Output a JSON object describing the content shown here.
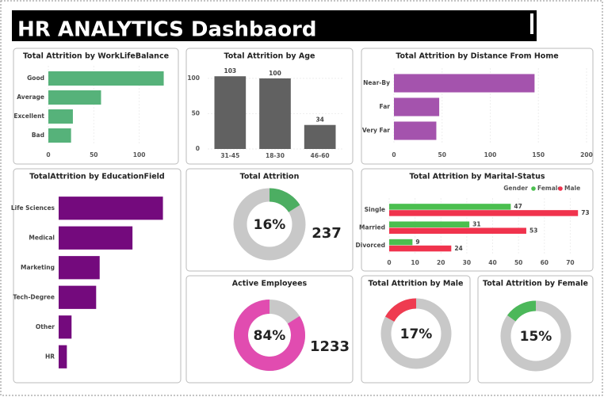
{
  "title": "HR ANALYTICS Dashbaord",
  "chart_data": [
    {
      "type": "barh",
      "title": "Total Attrition by WorkLifeBalance",
      "categories": [
        "Good",
        "Average",
        "Excellent",
        "Bad"
      ],
      "values": [
        127,
        58,
        27,
        25
      ],
      "color": "#56b27a",
      "xlim": [
        0,
        130
      ],
      "xticks": [
        0,
        50,
        100
      ]
    },
    {
      "type": "bar",
      "title": "Total Attrition by Age",
      "categories": [
        "31-45",
        "18-30",
        "46-60"
      ],
      "values": [
        103,
        100,
        34
      ],
      "color": "#616161",
      "ylim": [
        0,
        110
      ],
      "yticks": [
        0,
        50,
        100
      ]
    },
    {
      "type": "barh",
      "title": "Total Attrition by Distance From Home",
      "categories": [
        "Near-By",
        "Far",
        "Very Far"
      ],
      "values": [
        146,
        47,
        44
      ],
      "color": "#a453ad",
      "xlim": [
        0,
        200
      ],
      "xticks": [
        0,
        50,
        100,
        150,
        200
      ]
    },
    {
      "type": "barh",
      "title": "TotalAttrition by EducationField",
      "categories": [
        "Life Sciences",
        "Medical",
        "Marketing",
        "Tech-Degree",
        "Other",
        "HR"
      ],
      "values": [
        89,
        63,
        35,
        32,
        11,
        7
      ],
      "color": "#740a7d",
      "xlim": [
        0,
        92
      ]
    },
    {
      "type": "donut",
      "title": "Total Attrition",
      "value": 16,
      "value_label": "16%",
      "total": 237,
      "color": "#4cae62",
      "clockwise": true
    },
    {
      "type": "barh_grouped",
      "title": "Total Attrition by Marital-Status",
      "categories": [
        "Single",
        "Married",
        "Divorced"
      ],
      "legend_title": "Gender",
      "series": [
        {
          "name": "Female",
          "color": "#4bbf4f",
          "values": [
            47,
            31,
            9
          ]
        },
        {
          "name": "Male",
          "color": "#f0334d",
          "values": [
            73,
            53,
            24
          ]
        }
      ],
      "xlim": [
        0,
        76
      ],
      "xticks": [
        0,
        10,
        20,
        30,
        40,
        50,
        60,
        70
      ]
    },
    {
      "type": "donut",
      "title": "Active Employees",
      "value": 84,
      "value_label": "84%",
      "total": 1233,
      "color": "#e14cb0",
      "clockwise": false
    },
    {
      "type": "donut",
      "title": "Total Attrition by Male",
      "value": 17,
      "value_label": "17%",
      "color": "#ef3b50",
      "clockwise": false
    },
    {
      "type": "donut",
      "title": "Total Attrition by Female",
      "value": 15,
      "value_label": "15%",
      "color": "#4cb85a",
      "clockwise": false
    }
  ]
}
